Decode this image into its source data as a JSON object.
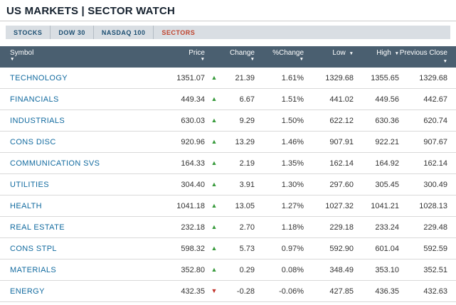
{
  "page": {
    "title": "US MARKETS | SECTOR WATCH"
  },
  "tabs": [
    {
      "label": "STOCKS",
      "active": false
    },
    {
      "label": "DOW 30",
      "active": false
    },
    {
      "label": "NASDAQ 100",
      "active": false
    },
    {
      "label": "SECTORS",
      "active": true
    }
  ],
  "icons": {
    "sort": "▼",
    "up": "▲",
    "down": "▼"
  },
  "colors": {
    "header_bg": "#4a5f70",
    "tab_bar_bg": "#d9dee3",
    "tab_text": "#1d4f72",
    "active_tab_red": "#c0442e",
    "symbol_link_blue": "#116a9f",
    "up_green": "#399b3d",
    "down_red": "#c2342c"
  },
  "table": {
    "columns": [
      {
        "label": "Symbol"
      },
      {
        "label": "Price"
      },
      {
        "label": "Change"
      },
      {
        "label": "%Change"
      },
      {
        "label": "Low"
      },
      {
        "label": "High"
      },
      {
        "label": "Previous Close"
      }
    ],
    "rows": [
      {
        "symbol": "TECHNOLOGY",
        "price": "1351.07",
        "direction": "up",
        "change": "21.39",
        "pct_change": "1.61%",
        "low": "1329.68",
        "high": "1355.65",
        "prev_close": "1329.68"
      },
      {
        "symbol": "FINANCIALS",
        "price": "449.34",
        "direction": "up",
        "change": "6.67",
        "pct_change": "1.51%",
        "low": "441.02",
        "high": "449.56",
        "prev_close": "442.67"
      },
      {
        "symbol": "INDUSTRIALS",
        "price": "630.03",
        "direction": "up",
        "change": "9.29",
        "pct_change": "1.50%",
        "low": "622.12",
        "high": "630.36",
        "prev_close": "620.74"
      },
      {
        "symbol": "CONS DISC",
        "price": "920.96",
        "direction": "up",
        "change": "13.29",
        "pct_change": "1.46%",
        "low": "907.91",
        "high": "922.21",
        "prev_close": "907.67"
      },
      {
        "symbol": "COMMUNICATION SVS",
        "price": "164.33",
        "direction": "up",
        "change": "2.19",
        "pct_change": "1.35%",
        "low": "162.14",
        "high": "164.92",
        "prev_close": "162.14"
      },
      {
        "symbol": "UTILITIES",
        "price": "304.40",
        "direction": "up",
        "change": "3.91",
        "pct_change": "1.30%",
        "low": "297.60",
        "high": "305.45",
        "prev_close": "300.49"
      },
      {
        "symbol": "HEALTH",
        "price": "1041.18",
        "direction": "up",
        "change": "13.05",
        "pct_change": "1.27%",
        "low": "1027.32",
        "high": "1041.21",
        "prev_close": "1028.13"
      },
      {
        "symbol": "REAL ESTATE",
        "price": "232.18",
        "direction": "up",
        "change": "2.70",
        "pct_change": "1.18%",
        "low": "229.18",
        "high": "233.24",
        "prev_close": "229.48"
      },
      {
        "symbol": "CONS STPL",
        "price": "598.32",
        "direction": "up",
        "change": "5.73",
        "pct_change": "0.97%",
        "low": "592.90",
        "high": "601.04",
        "prev_close": "592.59"
      },
      {
        "symbol": "MATERIALS",
        "price": "352.80",
        "direction": "up",
        "change": "0.29",
        "pct_change": "0.08%",
        "low": "348.49",
        "high": "353.10",
        "prev_close": "352.51"
      },
      {
        "symbol": "ENERGY",
        "price": "432.35",
        "direction": "down",
        "change": "-0.28",
        "pct_change": "-0.06%",
        "low": "427.85",
        "high": "436.35",
        "prev_close": "432.63"
      }
    ]
  }
}
